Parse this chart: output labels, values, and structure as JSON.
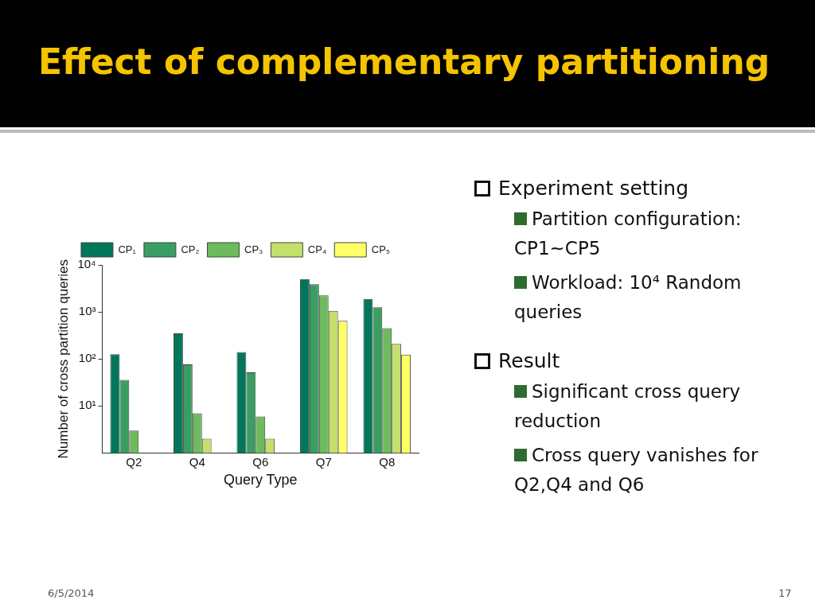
{
  "chart_data": {
    "type": "bar",
    "title": "Effect of complementary partitioning",
    "xlabel": "Query Type",
    "ylabel": "Number of cross partition queries",
    "categories": [
      "Q2",
      "Q4",
      "Q6",
      "Q7",
      "Q8"
    ],
    "series": [
      {
        "name": "CP₁",
        "color": "#00775a",
        "values": [
          126,
          350,
          140,
          5000,
          1900
        ]
      },
      {
        "name": "CP₂",
        "color": "#3a9e62",
        "values": [
          36,
          77,
          52,
          3900,
          1260
        ]
      },
      {
        "name": "CP₃",
        "color": "#6dbb5c",
        "values": [
          3,
          7,
          6,
          2250,
          450
        ]
      },
      {
        "name": "CP₄",
        "color": "#c3e06a",
        "values": [
          null,
          2,
          2,
          1050,
          210
        ]
      },
      {
        "name": "CP₅",
        "color": "#ffff66",
        "values": [
          null,
          null,
          null,
          650,
          124
        ]
      }
    ],
    "log": "y",
    "ylim": [
      1,
      10000
    ],
    "yticks": [
      {
        "value": 10,
        "label": "10¹"
      },
      {
        "value": 100,
        "label": "10²"
      },
      {
        "value": 1000,
        "label": "10³"
      },
      {
        "value": 10000,
        "label": "10⁴"
      }
    ],
    "grid": false,
    "legend": "top",
    "annotations": [
      "Experiment setting",
      "Partition configuration: CP1~CP5",
      "Workload: 10⁴ Random queries",
      "Result",
      "Significant cross query reduction",
      "Cross query vanishes for Q2,Q4 and Q6",
      "6/5/2014",
      "17"
    ]
  }
}
